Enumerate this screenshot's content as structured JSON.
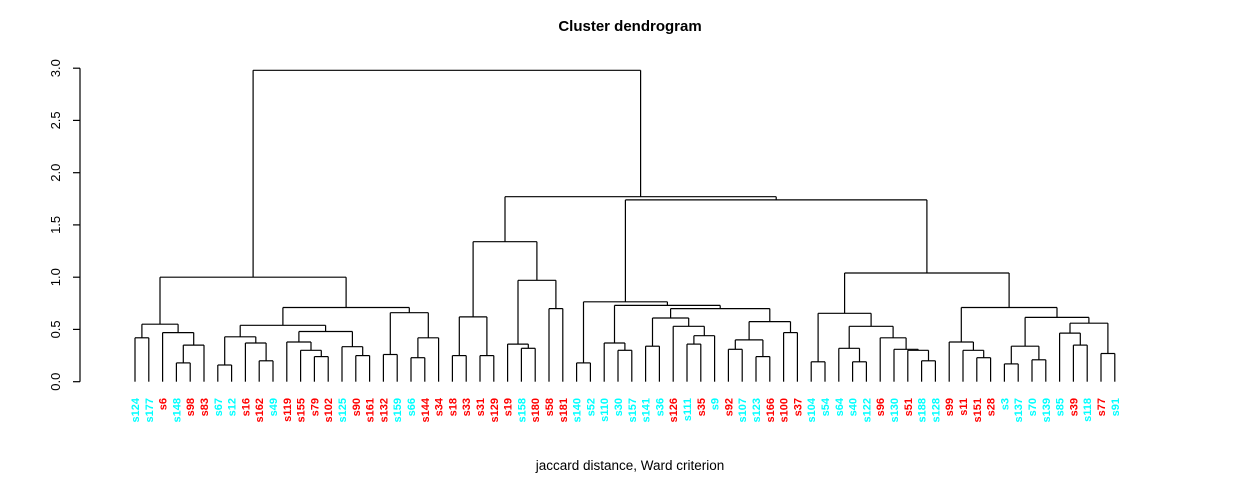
{
  "chart_data": {
    "type": "dendrogram",
    "title": "Cluster dendrogram",
    "xlabel": "jaccard distance, Ward criterion",
    "ylabel": "",
    "ylim": [
      0,
      3
    ],
    "yticks": [
      "0.0",
      "0.5",
      "1.0",
      "1.5",
      "2.0",
      "2.5",
      "3.0"
    ],
    "grid": "off",
    "line_color": "#000000",
    "label_colors": {
      "cyan": "#00FFFF",
      "red": "#FF0000"
    },
    "leaves": [
      {
        "label": "s124",
        "color": "cyan"
      },
      {
        "label": "s177",
        "color": "cyan"
      },
      {
        "label": "s6",
        "color": "red"
      },
      {
        "label": "s148",
        "color": "cyan"
      },
      {
        "label": "s98",
        "color": "red"
      },
      {
        "label": "s83",
        "color": "red"
      },
      {
        "label": "s67",
        "color": "cyan"
      },
      {
        "label": "s12",
        "color": "cyan"
      },
      {
        "label": "s16",
        "color": "red"
      },
      {
        "label": "s162",
        "color": "red"
      },
      {
        "label": "s49",
        "color": "cyan"
      },
      {
        "label": "s119",
        "color": "red"
      },
      {
        "label": "s155",
        "color": "red"
      },
      {
        "label": "s79",
        "color": "red"
      },
      {
        "label": "s102",
        "color": "red"
      },
      {
        "label": "s125",
        "color": "cyan"
      },
      {
        "label": "s90",
        "color": "red"
      },
      {
        "label": "s161",
        "color": "red"
      },
      {
        "label": "s132",
        "color": "red"
      },
      {
        "label": "s159",
        "color": "cyan"
      },
      {
        "label": "s66",
        "color": "cyan"
      },
      {
        "label": "s144",
        "color": "red"
      },
      {
        "label": "s34",
        "color": "red"
      },
      {
        "label": "s18",
        "color": "red"
      },
      {
        "label": "s33",
        "color": "red"
      },
      {
        "label": "s31",
        "color": "red"
      },
      {
        "label": "s129",
        "color": "red"
      },
      {
        "label": "s19",
        "color": "red"
      },
      {
        "label": "s158",
        "color": "cyan"
      },
      {
        "label": "s180",
        "color": "red"
      },
      {
        "label": "s58",
        "color": "red"
      },
      {
        "label": "s181",
        "color": "red"
      },
      {
        "label": "s140",
        "color": "cyan"
      },
      {
        "label": "s52",
        "color": "cyan"
      },
      {
        "label": "s110",
        "color": "cyan"
      },
      {
        "label": "s30",
        "color": "cyan"
      },
      {
        "label": "s157",
        "color": "cyan"
      },
      {
        "label": "s141",
        "color": "cyan"
      },
      {
        "label": "s36",
        "color": "cyan"
      },
      {
        "label": "s126",
        "color": "red"
      },
      {
        "label": "s111",
        "color": "cyan"
      },
      {
        "label": "s35",
        "color": "red"
      },
      {
        "label": "s9",
        "color": "cyan"
      },
      {
        "label": "s92",
        "color": "red"
      },
      {
        "label": "s107",
        "color": "cyan"
      },
      {
        "label": "s123",
        "color": "cyan"
      },
      {
        "label": "s166",
        "color": "red"
      },
      {
        "label": "s100",
        "color": "red"
      },
      {
        "label": "s37",
        "color": "red"
      },
      {
        "label": "s104",
        "color": "cyan"
      },
      {
        "label": "s54",
        "color": "cyan"
      },
      {
        "label": "s64",
        "color": "cyan"
      },
      {
        "label": "s40",
        "color": "cyan"
      },
      {
        "label": "s122",
        "color": "cyan"
      },
      {
        "label": "s96",
        "color": "red"
      },
      {
        "label": "s130",
        "color": "cyan"
      },
      {
        "label": "s51",
        "color": "red"
      },
      {
        "label": "s188",
        "color": "cyan"
      },
      {
        "label": "s128",
        "color": "cyan"
      },
      {
        "label": "s99",
        "color": "red"
      },
      {
        "label": "s11",
        "color": "red"
      },
      {
        "label": "s151",
        "color": "red"
      },
      {
        "label": "s28",
        "color": "red"
      },
      {
        "label": "s3",
        "color": "cyan"
      },
      {
        "label": "s137",
        "color": "cyan"
      },
      {
        "label": "s70",
        "color": "cyan"
      },
      {
        "label": "s139",
        "color": "cyan"
      },
      {
        "label": "s85",
        "color": "cyan"
      },
      {
        "label": "s39",
        "color": "red"
      },
      {
        "label": "s118",
        "color": "cyan"
      },
      {
        "label": "s77",
        "color": "red"
      },
      {
        "label": "s91",
        "color": "cyan"
      }
    ],
    "tree": {
      "h": 2.98,
      "c": [
        {
          "h": 1.0,
          "c": [
            {
              "h": 0.55,
              "c": [
                {
                  "h": 0.42,
                  "c": [
                    "s124",
                    "s177"
                  ]
                },
                {
                  "h": 0.47,
                  "c": [
                    "s6",
                    {
                      "h": 0.35,
                      "c": [
                        {
                          "h": 0.18,
                          "c": [
                            "s148",
                            "s98"
                          ]
                        },
                        "s83"
                      ]
                    }
                  ]
                }
              ]
            },
            {
              "h": 0.71,
              "c": [
                {
                  "h": 0.54,
                  "c": [
                    {
                      "h": 0.43,
                      "c": [
                        {
                          "h": 0.16,
                          "c": [
                            "s67",
                            "s12"
                          ]
                        },
                        {
                          "h": 0.37,
                          "c": [
                            "s16",
                            {
                              "h": 0.2,
                              "c": [
                                "s162",
                                "s49"
                              ]
                            }
                          ]
                        }
                      ]
                    },
                    {
                      "h": 0.48,
                      "c": [
                        {
                          "h": 0.38,
                          "c": [
                            "s119",
                            {
                              "h": 0.3,
                              "c": [
                                "s155",
                                {
                                  "h": 0.24,
                                  "c": [
                                    "s79",
                                    "s102"
                                  ]
                                }
                              ]
                            }
                          ]
                        },
                        {
                          "h": 0.335,
                          "c": [
                            "s125",
                            {
                              "h": 0.25,
                              "c": [
                                "s90",
                                "s161"
                              ]
                            }
                          ]
                        }
                      ]
                    }
                  ]
                },
                {
                  "h": 0.66,
                  "c": [
                    {
                      "h": 0.26,
                      "c": [
                        "s132",
                        "s159"
                      ]
                    },
                    {
                      "h": 0.42,
                      "c": [
                        {
                          "h": 0.23,
                          "c": [
                            "s66",
                            "s144"
                          ]
                        },
                        "s34"
                      ]
                    }
                  ]
                }
              ]
            }
          ]
        },
        {
          "h": 1.77,
          "c": [
            {
              "h": 1.34,
              "c": [
                {
                  "h": 0.62,
                  "c": [
                    {
                      "h": 0.25,
                      "c": [
                        "s18",
                        "s33"
                      ]
                    },
                    {
                      "h": 0.25,
                      "c": [
                        "s31",
                        "s129"
                      ]
                    }
                  ]
                },
                {
                  "h": 0.97,
                  "c": [
                    {
                      "h": 0.36,
                      "c": [
                        "s19",
                        {
                          "h": 0.32,
                          "c": [
                            "s158",
                            "s180"
                          ]
                        }
                      ]
                    },
                    {
                      "h": 0.7,
                      "c": [
                        "s58",
                        "s181"
                      ]
                    }
                  ]
                }
              ]
            },
            {
              "h": 1.74,
              "c": [
                {
                  "h": 0.765,
                  "c": [
                    {
                      "h": 0.18,
                      "c": [
                        "s140",
                        "s52"
                      ]
                    },
                    {
                      "h": 0.73,
                      "c": [
                        {
                          "h": 0.37,
                          "c": [
                            "s110",
                            {
                              "h": 0.3,
                              "c": [
                                "s30",
                                "s157"
                              ]
                            }
                          ]
                        },
                        {
                          "h": 0.7,
                          "c": [
                            {
                              "h": 0.61,
                              "c": [
                                {
                                  "h": 0.34,
                                  "c": [
                                    "s141",
                                    "s36"
                                  ]
                                },
                                {
                                  "h": 0.53,
                                  "c": [
                                    "s126",
                                    {
                                      "h": 0.44,
                                      "c": [
                                        {
                                          "h": 0.36,
                                          "c": [
                                            "s111",
                                            "s35"
                                          ]
                                        },
                                        "s9"
                                      ]
                                    }
                                  ]
                                }
                              ]
                            },
                            {
                              "h": 0.575,
                              "c": [
                                {
                                  "h": 0.4,
                                  "c": [
                                    {
                                      "h": 0.31,
                                      "c": [
                                        "s92",
                                        "s107"
                                      ]
                                    },
                                    {
                                      "h": 0.24,
                                      "c": [
                                        "s123",
                                        "s166"
                                      ]
                                    }
                                  ]
                                },
                                {
                                  "h": 0.47,
                                  "c": [
                                    "s100",
                                    "s37"
                                  ]
                                }
                              ]
                            }
                          ]
                        }
                      ]
                    }
                  ]
                },
                {
                  "h": 1.04,
                  "c": [
                    {
                      "h": 0.655,
                      "c": [
                        {
                          "h": 0.19,
                          "c": [
                            "s104",
                            "s54"
                          ]
                        },
                        {
                          "h": 0.53,
                          "c": [
                            {
                              "h": 0.32,
                              "c": [
                                "s64",
                                {
                                  "h": 0.19,
                                  "c": [
                                    "s40",
                                    "s122"
                                  ]
                                }
                              ]
                            },
                            {
                              "h": 0.42,
                              "c": [
                                "s96",
                                {
                                  "h": 0.31,
                                  "c": [
                                    "s130",
                                    {
                                      "h": 0.3,
                                      "c": [
                                        "s51",
                                        {
                                          "h": 0.2,
                                          "c": [
                                            "s188",
                                            "s128"
                                          ]
                                        }
                                      ]
                                    }
                                  ]
                                }
                              ]
                            }
                          ]
                        }
                      ]
                    },
                    {
                      "h": 0.71,
                      "c": [
                        {
                          "h": 0.38,
                          "c": [
                            "s99",
                            {
                              "h": 0.3,
                              "c": [
                                "s11",
                                {
                                  "h": 0.23,
                                  "c": [
                                    "s151",
                                    "s28"
                                  ]
                                }
                              ]
                            }
                          ]
                        },
                        {
                          "h": 0.615,
                          "c": [
                            {
                              "h": 0.34,
                              "c": [
                                {
                                  "h": 0.17,
                                  "c": [
                                    "s3",
                                    "s137"
                                  ]
                                },
                                {
                                  "h": 0.21,
                                  "c": [
                                    "s70",
                                    "s139"
                                  ]
                                }
                              ]
                            },
                            {
                              "h": 0.56,
                              "c": [
                                {
                                  "h": 0.465,
                                  "c": [
                                    "s85",
                                    {
                                      "h": 0.35,
                                      "c": [
                                        "s39",
                                        "s118"
                                      ]
                                    }
                                  ]
                                },
                                {
                                  "h": 0.27,
                                  "c": [
                                    "s77",
                                    "s91"
                                  ]
                                }
                              ]
                            }
                          ]
                        }
                      ]
                    }
                  ]
                }
              ]
            }
          ]
        }
      ]
    }
  }
}
